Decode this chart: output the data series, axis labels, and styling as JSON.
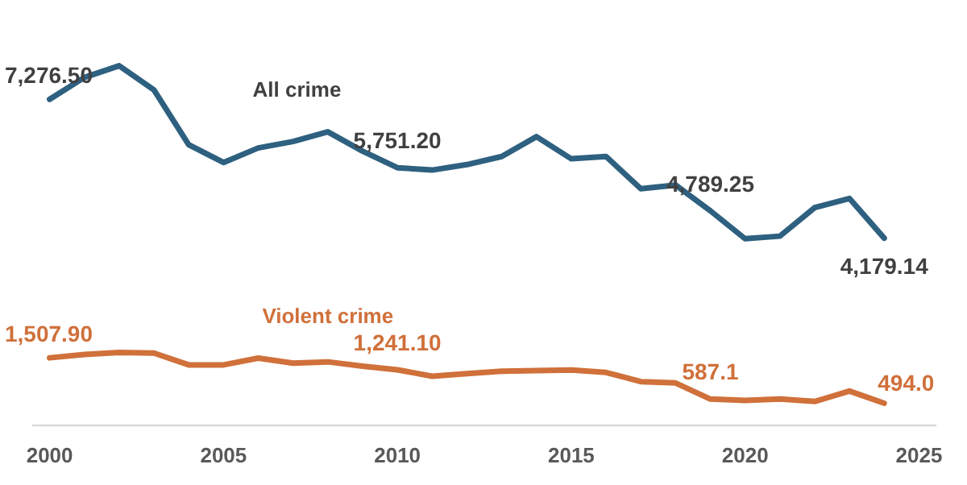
{
  "chart_data": {
    "type": "line",
    "x": [
      2000,
      2001,
      2002,
      2003,
      2004,
      2005,
      2006,
      2007,
      2008,
      2009,
      2010,
      2011,
      2012,
      2013,
      2014,
      2015,
      2016,
      2017,
      2018,
      2019,
      2020,
      2021,
      2022,
      2023,
      2024
    ],
    "series": [
      {
        "name": "All crime",
        "color": "#2e6080",
        "values": [
          7276.5,
          7765,
          8027,
          7487,
          6264,
          5868,
          6192,
          6336,
          6552,
          6120,
          5751.2,
          5698,
          5820,
          6001,
          6444,
          5950,
          6001,
          5281,
          5364,
          4789.25,
          4165,
          4223,
          4860,
          5065,
          4179.14
        ],
        "value_labels": [
          "7,276.50",
          null,
          null,
          null,
          null,
          null,
          null,
          null,
          null,
          null,
          "5,751.20",
          null,
          null,
          null,
          null,
          null,
          null,
          null,
          null,
          "4,789.25",
          null,
          null,
          null,
          null,
          "4,179.14"
        ]
      },
      {
        "name": "Violent crime",
        "color": "#d0703a",
        "values": [
          1507.9,
          1584,
          1627,
          1613,
          1350,
          1350,
          1501,
          1390,
          1418,
          1321,
          1241.1,
          1098,
          1156,
          1210,
          1224,
          1238,
          1181,
          976,
          947,
          587.1,
          558,
          587,
          533,
          767,
          494.0
        ],
        "value_labels": [
          "1,507.90",
          null,
          null,
          null,
          null,
          null,
          null,
          null,
          null,
          null,
          "1,241.10",
          null,
          null,
          null,
          null,
          null,
          null,
          null,
          null,
          "587.1",
          null,
          null,
          null,
          null,
          "494.0"
        ]
      }
    ],
    "xlim": [
      1999.5,
      2025.5
    ],
    "xticks": [
      2000,
      2005,
      2010,
      2015,
      2020,
      2025
    ],
    "tick_labels": "x",
    "grid": false,
    "legend": false,
    "marker": "none",
    "line_style": "solid"
  }
}
